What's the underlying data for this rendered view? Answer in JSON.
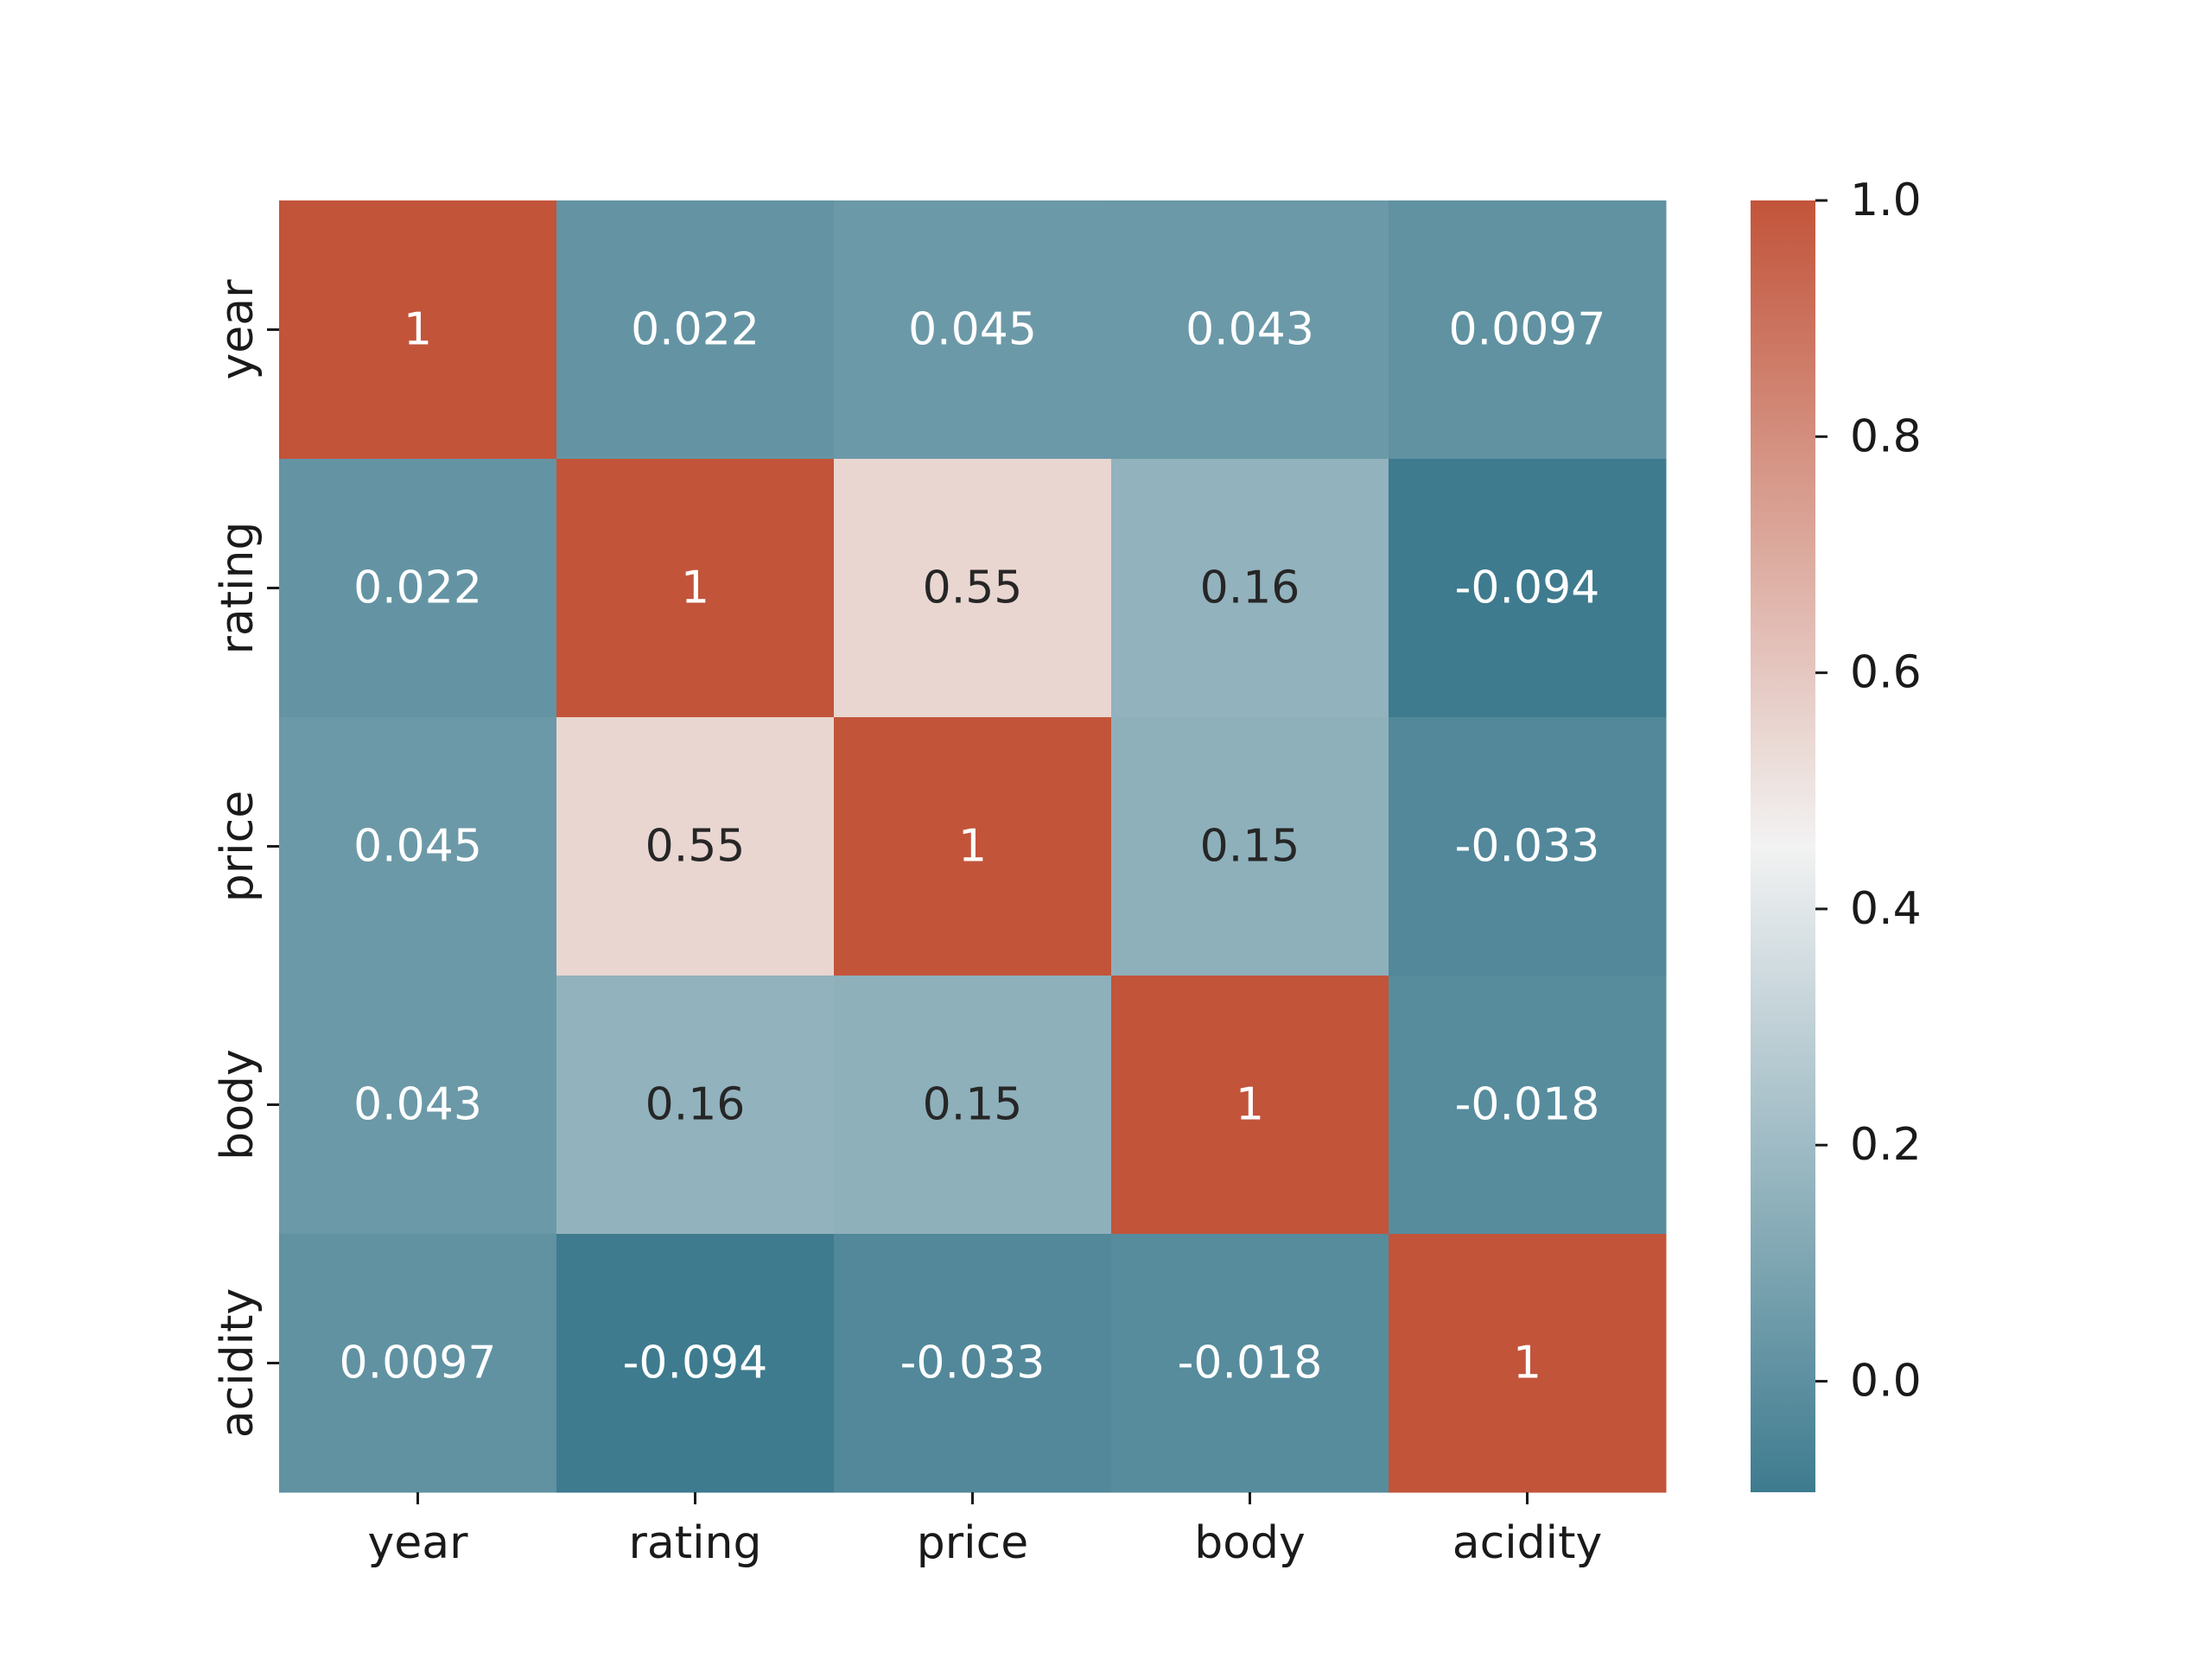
{
  "chart_data": {
    "type": "heatmap",
    "title": "",
    "xlabel": "",
    "ylabel": "",
    "x_categories": [
      "year",
      "rating",
      "price",
      "body",
      "acidity"
    ],
    "y_categories": [
      "year",
      "rating",
      "price",
      "body",
      "acidity"
    ],
    "values": [
      [
        1,
        0.022,
        0.045,
        0.043,
        0.0097
      ],
      [
        0.022,
        1,
        0.55,
        0.16,
        -0.094
      ],
      [
        0.045,
        0.55,
        1,
        0.15,
        -0.033
      ],
      [
        0.043,
        0.16,
        0.15,
        1,
        -0.018
      ],
      [
        0.0097,
        -0.094,
        -0.033,
        -0.018,
        1
      ]
    ],
    "annotations": [
      [
        "1",
        "0.022",
        "0.045",
        "0.043",
        "0.0097"
      ],
      [
        "0.022",
        "1",
        "0.55",
        "0.16",
        "-0.094"
      ],
      [
        "0.045",
        "0.55",
        "1",
        "0.15",
        "-0.033"
      ],
      [
        "0.043",
        "0.16",
        "0.15",
        "1",
        "-0.018"
      ],
      [
        "0.0097",
        "-0.094",
        "-0.033",
        "-0.018",
        "1"
      ]
    ],
    "colorbar": {
      "vmin": -0.094,
      "vmax": 1.0,
      "ticks": [
        0.0,
        0.2,
        0.4,
        0.6,
        0.8,
        1.0
      ],
      "tick_labels": [
        "0.0",
        "0.2",
        "0.4",
        "0.6",
        "0.8",
        "1.0"
      ],
      "colormap": {
        "low": "#3e7b8f",
        "mid": "#f2f2f2",
        "high": "#c2543a"
      }
    },
    "grid": false,
    "legend": "none"
  }
}
